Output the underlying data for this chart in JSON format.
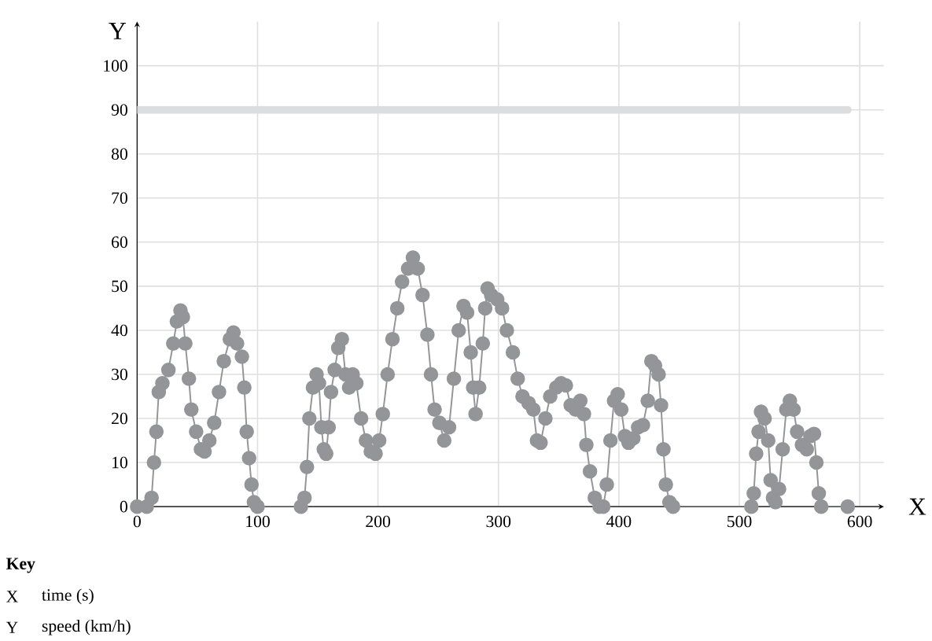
{
  "chart_data": {
    "type": "line",
    "xlabel": "X",
    "ylabel": "Y",
    "x": [
      0,
      8,
      12,
      14,
      16,
      18,
      21,
      26,
      30,
      33,
      36,
      38,
      40,
      43,
      45,
      49,
      53,
      56,
      60,
      64,
      68,
      72,
      77,
      80,
      83,
      87,
      89,
      91,
      93,
      95,
      97,
      100,
      136,
      139,
      141,
      143,
      146,
      149,
      151,
      153,
      155,
      157,
      159,
      161,
      164,
      167,
      170,
      173,
      176,
      179,
      182,
      186,
      190,
      194,
      198,
      201,
      204,
      208,
      212,
      216,
      220,
      225,
      229,
      233,
      237,
      241,
      244,
      247,
      251,
      255,
      259,
      263,
      267,
      271,
      274,
      277,
      279,
      281,
      284,
      287,
      289,
      291,
      294,
      299,
      303,
      307,
      312,
      316,
      320,
      325,
      329,
      332,
      335,
      339,
      343,
      348,
      352,
      356,
      360,
      364,
      368,
      371,
      373,
      376,
      380,
      384,
      387,
      390,
      393,
      396,
      399,
      402,
      405,
      408,
      412,
      416,
      420,
      424,
      427,
      430,
      433,
      435,
      437,
      439,
      442,
      445,
      510,
      512,
      514,
      516,
      518,
      521,
      524,
      526,
      528,
      530,
      533,
      536,
      539,
      542,
      545,
      548,
      552,
      556,
      559,
      562,
      564,
      566,
      568,
      590
    ],
    "series": [
      {
        "color": "#939598",
        "values": [
          0,
          0,
          2,
          10,
          17,
          26,
          28,
          31,
          37,
          42,
          44.5,
          43,
          37,
          29,
          22,
          17,
          13,
          12.5,
          15,
          19,
          26,
          33,
          38,
          39.5,
          37,
          34,
          27,
          17,
          11,
          5,
          1,
          0,
          0,
          2,
          9,
          20,
          27,
          30,
          28,
          18,
          13,
          12,
          18,
          26,
          31,
          36,
          38,
          30,
          27,
          30,
          28,
          20,
          15,
          12.5,
          12,
          15,
          21,
          30,
          38,
          45,
          51,
          54,
          56.5,
          54,
          48,
          39,
          30,
          22,
          19,
          15,
          18,
          29,
          40,
          45.5,
          44,
          35,
          27,
          21,
          27,
          37,
          45,
          49.5,
          48,
          47,
          45,
          40,
          35,
          29,
          25,
          23.5,
          22,
          15,
          14.5,
          20,
          25,
          27,
          28,
          27.5,
          23,
          22,
          24,
          21,
          14,
          8,
          2,
          0,
          0,
          5,
          15,
          24,
          25.5,
          22,
          16,
          14.5,
          15.5,
          18,
          18.5,
          24,
          33,
          32,
          30,
          23,
          13,
          5,
          1,
          0,
          0,
          3,
          12,
          17,
          21.5,
          20,
          15,
          6,
          2,
          1,
          4,
          13,
          22,
          24,
          22,
          17,
          14,
          13,
          16,
          16.5,
          10,
          3,
          0,
          0
        ]
      }
    ],
    "xlim": [
      0,
      620
    ],
    "ylim": [
      0,
      110
    ],
    "xticks": [
      0,
      100,
      200,
      300,
      400,
      500,
      600
    ],
    "yticks": [
      0,
      10,
      20,
      30,
      40,
      50,
      60,
      70,
      80,
      90,
      100
    ],
    "grid": true,
    "marker": "circle",
    "line_style": "solid",
    "ref_lines": [
      {
        "axis": "y",
        "value": 90,
        "color": "#dcdddf"
      }
    ],
    "annotations": [
      "Key",
      "X",
      "time (s)",
      "Y",
      "speed (km/h)"
    ]
  }
}
